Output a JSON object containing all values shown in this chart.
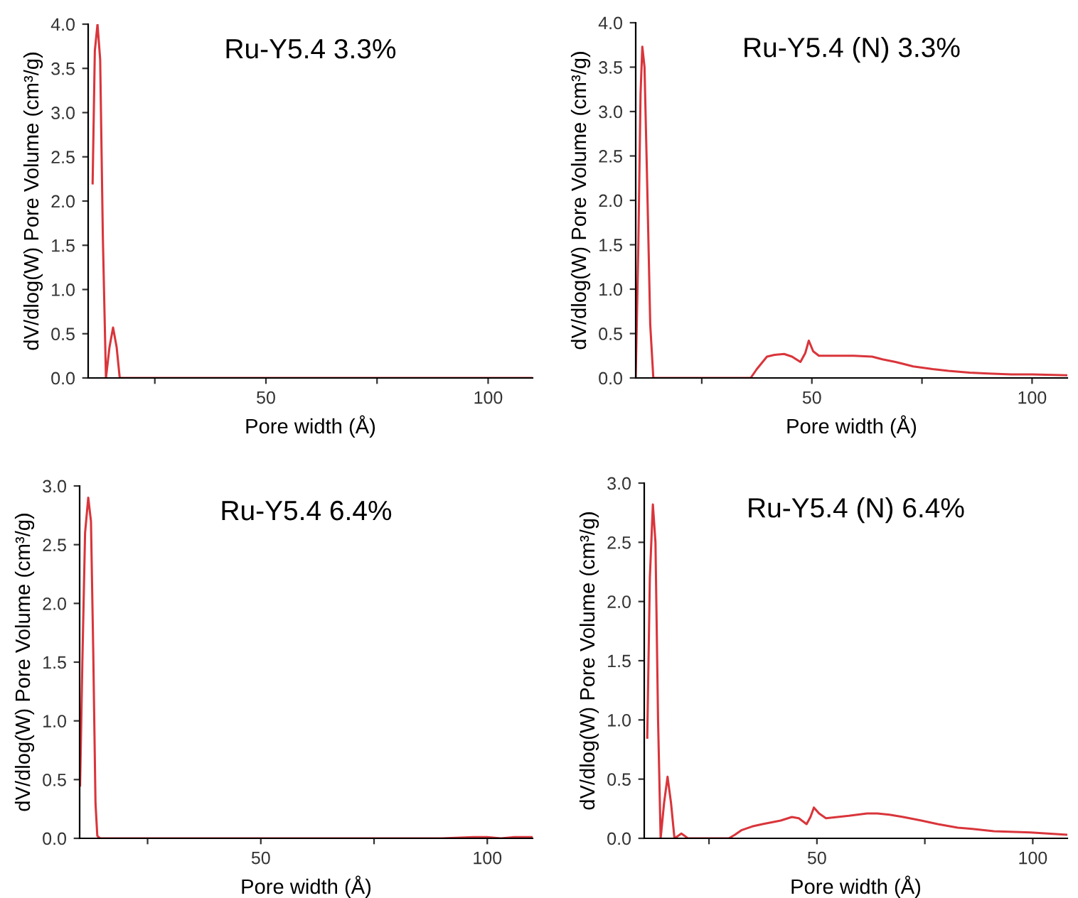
{
  "chart_data": [
    {
      "type": "line",
      "title": "Ru-Y5.4 3.3%",
      "xlabel": "Pore width (Å)",
      "ylabel": "dV/dlog(W) Pore Volume (cm³/g)",
      "xlim": [
        10,
        110
      ],
      "ylim": [
        0,
        4.0
      ],
      "xticks": [
        {
          "value": 25,
          "label": null
        },
        {
          "value": 50,
          "label": "50"
        },
        {
          "value": 75,
          "label": null
        },
        {
          "value": 100,
          "label": "100"
        }
      ],
      "yticks": [
        {
          "value": 0,
          "label": "0.0"
        },
        {
          "value": 0.5,
          "label": "0.5"
        },
        {
          "value": 1,
          "label": "1.0"
        },
        {
          "value": 1.5,
          "label": "1.5"
        },
        {
          "value": 2,
          "label": "2.0"
        },
        {
          "value": 2.5,
          "label": "2.5"
        },
        {
          "value": 3,
          "label": "3.0"
        },
        {
          "value": 3.5,
          "label": "3.5"
        },
        {
          "value": 4,
          "label": "4.0"
        }
      ],
      "grid": false,
      "line_style": "solid",
      "series": [
        {
          "color": "#d9353b",
          "x": [
            11.0,
            11.5,
            12.1,
            12.7,
            13.3,
            14.0,
            14.8,
            15.6,
            16.4,
            17.1,
            20,
            50,
            110
          ],
          "values": [
            2.2,
            3.7,
            4.0,
            3.6,
            1.6,
            0.0,
            0.35,
            0.57,
            0.35,
            0.0,
            0.0,
            0.0,
            0.0
          ]
        }
      ]
    },
    {
      "type": "line",
      "title": "Ru-Y5.4 (N) 3.3%",
      "xlabel": "Pore width (Å)",
      "ylabel": "dV/dlog(W) Pore Volume (cm³/g)",
      "xlim": [
        10,
        108
      ],
      "ylim": [
        0,
        4.0
      ],
      "xticks": [
        {
          "value": 25,
          "label": null
        },
        {
          "value": 50,
          "label": "50"
        },
        {
          "value": 75,
          "label": null
        },
        {
          "value": 100,
          "label": "100"
        }
      ],
      "yticks": [
        {
          "value": 0,
          "label": "0.0"
        },
        {
          "value": 0.5,
          "label": "0.5"
        },
        {
          "value": 1,
          "label": "1.0"
        },
        {
          "value": 1.5,
          "label": "1.5"
        },
        {
          "value": 2,
          "label": "2.0"
        },
        {
          "value": 2.5,
          "label": "2.5"
        },
        {
          "value": 3,
          "label": "3.0"
        },
        {
          "value": 3.5,
          "label": "3.5"
        },
        {
          "value": 4,
          "label": "4.0"
        }
      ],
      "grid": false,
      "line_style": "solid",
      "series": [
        {
          "color": "#d9353b",
          "x": [
            10.0,
            10.6,
            11.1,
            11.5,
            12.0,
            12.6,
            13.3,
            14.0,
            20,
            30,
            36.1,
            37.5,
            39.8,
            41.5,
            43.7,
            45.5,
            47.4,
            48.5,
            49.3,
            50.3,
            51.6,
            55,
            59.5,
            63.7,
            66,
            69,
            73,
            77.4,
            81,
            85.8,
            90,
            95.3,
            100,
            108
          ],
          "values": [
            0.0,
            1.5,
            3.2,
            3.73,
            3.5,
            2.2,
            0.6,
            0.0,
            0.0,
            0.0,
            0.0,
            0.1,
            0.24,
            0.26,
            0.27,
            0.24,
            0.18,
            0.28,
            0.42,
            0.3,
            0.25,
            0.25,
            0.25,
            0.24,
            0.21,
            0.18,
            0.13,
            0.1,
            0.08,
            0.06,
            0.05,
            0.04,
            0.04,
            0.03
          ]
        }
      ]
    },
    {
      "type": "line",
      "title": "Ru-Y5.4 6.4%",
      "xlabel": "Pore width (Å)",
      "ylabel": "dV/dlog(W) Pore Volume (cm³/g)",
      "xlim": [
        10,
        110
      ],
      "ylim": [
        0,
        3.0
      ],
      "xticks": [
        {
          "value": 25,
          "label": null
        },
        {
          "value": 50,
          "label": "50"
        },
        {
          "value": 75,
          "label": null
        },
        {
          "value": 100,
          "label": "100"
        }
      ],
      "yticks": [
        {
          "value": 0,
          "label": "0.0"
        },
        {
          "value": 0.5,
          "label": "0.5"
        },
        {
          "value": 1,
          "label": "1.0"
        },
        {
          "value": 1.5,
          "label": "1.5"
        },
        {
          "value": 2,
          "label": "2.0"
        },
        {
          "value": 2.5,
          "label": "2.5"
        },
        {
          "value": 3,
          "label": "3.0"
        }
      ],
      "grid": false,
      "line_style": "solid",
      "series": [
        {
          "color": "#d9353b",
          "x": [
            10.1,
            10.6,
            11.2,
            11.9,
            12.5,
            13.0,
            13.5,
            13.9,
            14.5,
            30,
            60,
            90,
            97,
            100,
            103,
            106,
            110
          ],
          "values": [
            0.45,
            1.5,
            2.6,
            2.9,
            2.7,
            1.6,
            0.3,
            0.02,
            0.0,
            0.0,
            0.0,
            0.0,
            0.01,
            0.01,
            0.0,
            0.01,
            0.01
          ]
        }
      ]
    },
    {
      "type": "line",
      "title": "Ru-Y5.4 (N) 6.4%",
      "xlabel": "Pore width (Å)",
      "ylabel": "dV/dlog(W) Pore Volume (cm³/g)",
      "xlim": [
        10,
        108
      ],
      "ylim": [
        0,
        3.0
      ],
      "xticks": [
        {
          "value": 25,
          "label": null
        },
        {
          "value": 50,
          "label": "50"
        },
        {
          "value": 75,
          "label": null
        },
        {
          "value": 100,
          "label": "100"
        }
      ],
      "yticks": [
        {
          "value": 0,
          "label": "0.0"
        },
        {
          "value": 0.5,
          "label": "0.5"
        },
        {
          "value": 1,
          "label": "1.0"
        },
        {
          "value": 1.5,
          "label": "1.5"
        },
        {
          "value": 2,
          "label": "2.0"
        },
        {
          "value": 2.5,
          "label": "2.5"
        },
        {
          "value": 3,
          "label": "3.0"
        }
      ],
      "grid": false,
      "line_style": "solid",
      "series": [
        {
          "color": "#d9353b",
          "x": [
            10.7,
            11.3,
            12.0,
            12.6,
            13.2,
            13.8,
            14.6,
            15.4,
            16.2,
            17.0,
            17.8,
            18.6,
            19.4,
            20.1,
            25,
            29.6,
            31,
            32.6,
            35,
            37.4,
            41.6,
            44.2,
            45.8,
            47.6,
            48.5,
            49.3,
            50.5,
            52.1,
            57.4,
            61.6,
            64,
            66.8,
            70,
            74.2,
            78,
            82.6,
            86,
            91,
            99.5,
            108
          ],
          "values": [
            0.85,
            2.2,
            2.82,
            2.5,
            1.0,
            0.0,
            0.3,
            0.52,
            0.3,
            0.0,
            0.02,
            0.04,
            0.02,
            0.0,
            0.0,
            0.0,
            0.03,
            0.07,
            0.1,
            0.12,
            0.15,
            0.18,
            0.17,
            0.12,
            0.18,
            0.26,
            0.21,
            0.17,
            0.19,
            0.21,
            0.21,
            0.2,
            0.18,
            0.15,
            0.12,
            0.09,
            0.08,
            0.06,
            0.05,
            0.03
          ]
        }
      ]
    }
  ]
}
